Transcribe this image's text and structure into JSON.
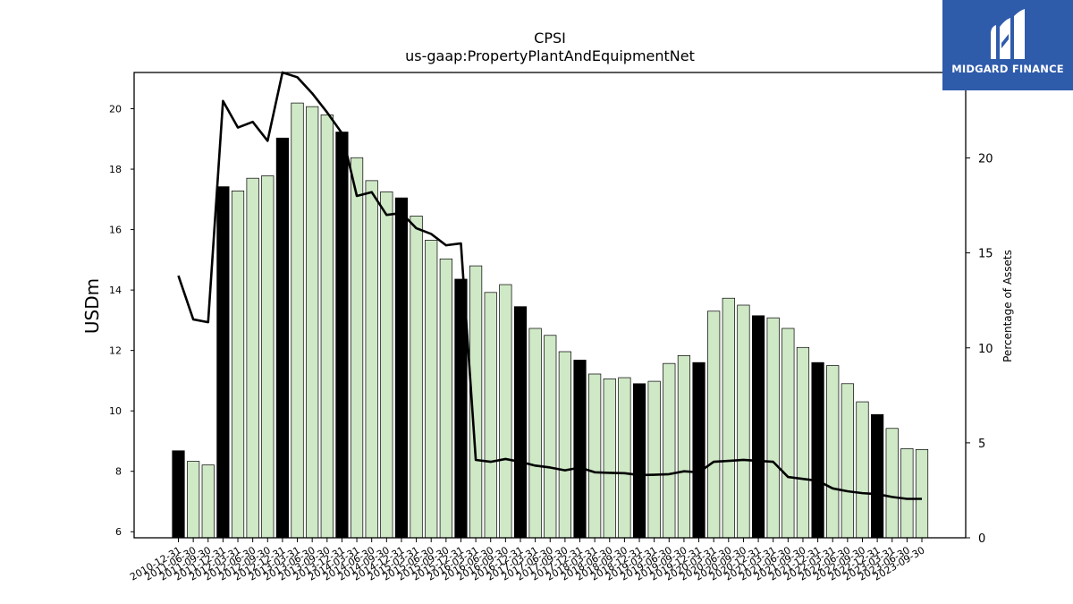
{
  "chart_data": {
    "type": "bar",
    "title": "CPSI",
    "subtitle": "us-gaap:PropertyPlantAndEquipmentNet",
    "ylabel": "USDm",
    "y2label": "Percentage of Assets",
    "ylim": [
      5.8,
      21.2
    ],
    "y2lim": [
      0,
      24.5
    ],
    "yticks": [
      6,
      8,
      10,
      12,
      14,
      16,
      18,
      20
    ],
    "y2ticks": [
      0,
      5,
      10,
      15,
      20
    ],
    "categories": [
      "2010-12-31",
      "2011-06-30",
      "2011-09-30",
      "2011-12-31",
      "2012-03-31",
      "2012-06-30",
      "2012-09-30",
      "2012-12-31",
      "2013-03-31",
      "2013-06-30",
      "2013-09-30",
      "2013-12-31",
      "2014-03-31",
      "2014-06-30",
      "2014-09-30",
      "2014-12-31",
      "2015-03-31",
      "2015-06-30",
      "2015-09-30",
      "2015-12-31",
      "2016-03-31",
      "2016-06-30",
      "2016-09-30",
      "2016-12-31",
      "2017-03-31",
      "2017-06-30",
      "2017-09-30",
      "2017-12-31",
      "2018-03-31",
      "2018-06-30",
      "2018-09-30",
      "2018-12-31",
      "2019-03-31",
      "2019-06-30",
      "2019-09-30",
      "2019-12-31",
      "2020-03-31",
      "2020-06-30",
      "2020-09-30",
      "2020-12-31",
      "2021-03-31",
      "2021-06-30",
      "2021-09-30",
      "2021-12-31",
      "2022-03-31",
      "2022-06-30",
      "2022-09-30",
      "2022-12-31",
      "2023-03-31",
      "2023-06-30",
      "2023-09-30"
    ],
    "series": [
      {
        "values": [
          8.68,
          8.33,
          8.21,
          17.42,
          17.28,
          17.7,
          17.78,
          19.03,
          20.19,
          20.07,
          19.8,
          19.23,
          18.38,
          17.62,
          17.25,
          17.05,
          16.45,
          15.65,
          15.03,
          14.36,
          14.8,
          13.92,
          14.18,
          13.45,
          12.73,
          12.5,
          11.96,
          11.68,
          11.22,
          11.06,
          11.1,
          10.9,
          10.98,
          11.57,
          11.83,
          11.6,
          13.3,
          13.73,
          13.5,
          13.15,
          13.08,
          12.73,
          12.1,
          11.6,
          11.5,
          10.9,
          10.3,
          9.88,
          9.42,
          8.75,
          8.72
        ],
        "highlight": [
          true,
          false,
          false,
          true,
          false,
          false,
          false,
          true,
          false,
          false,
          false,
          true,
          false,
          false,
          false,
          true,
          false,
          false,
          false,
          true,
          false,
          false,
          false,
          true,
          false,
          false,
          false,
          true,
          false,
          false,
          false,
          true,
          false,
          false,
          false,
          true,
          false,
          false,
          false,
          true,
          false,
          false,
          false,
          true,
          false,
          false,
          false,
          true,
          false,
          false,
          false
        ]
      },
      {
        "values": [
          13.8,
          11.5,
          11.35,
          23.0,
          21.6,
          21.9,
          20.9,
          24.5,
          24.25,
          23.4,
          22.4,
          21.3,
          18.0,
          18.2,
          17.0,
          17.1,
          16.3,
          16.0,
          15.4,
          15.5,
          4.1,
          4.0,
          4.15,
          4.0,
          3.8,
          3.7,
          3.55,
          3.7,
          3.45,
          3.42,
          3.4,
          3.3,
          3.32,
          3.35,
          3.5,
          3.45,
          4.0,
          4.05,
          4.1,
          4.05,
          4.0,
          3.2,
          3.1,
          3.0,
          2.6,
          2.45,
          2.35,
          2.3,
          2.15,
          2.05,
          2.05
        ]
      }
    ],
    "colors": {
      "bar_fill": "#cfe8c6",
      "bar_highlight": "#000000",
      "line": "#000000"
    }
  },
  "logo": {
    "text": "MIDGARD FINANCE",
    "icon": "midgard-logo-icon",
    "background": "#2f5bab"
  }
}
